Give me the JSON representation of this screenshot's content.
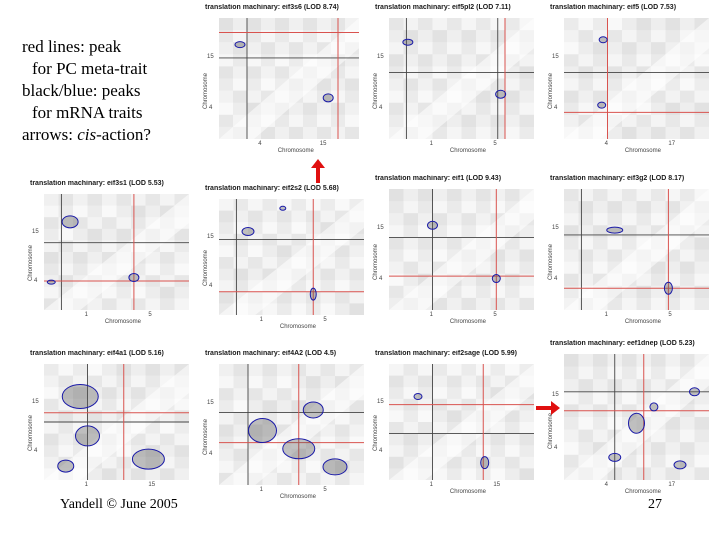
{
  "legend": {
    "line1": "red lines: peak",
    "line2": "for PC meta-trait",
    "line3": "black/blue: peaks",
    "line4": "for mRNA traits",
    "line5_prefix": "arrows: ",
    "line5_em": "cis",
    "line5_suffix": "-action?"
  },
  "footer": {
    "author": "Yandell © June 2005",
    "page": "27"
  },
  "colors": {
    "red_line": "#d9534f",
    "black_line": "#444444",
    "blob": "#1a1aa8",
    "arrow": "#e01010"
  },
  "chart_data": [
    {
      "type": "heatmap",
      "title": "translation machinary: eif3s6 (LOD 8.74)",
      "xlabel": "Chromosome",
      "ylabel": "Chromosome",
      "yticks": [
        "15",
        "4"
      ],
      "xticks": [
        "4",
        "15"
      ],
      "arrow": "up"
    },
    {
      "type": "heatmap",
      "title": "translation machinary: eif5pl2 (LOD 7.11)",
      "xlabel": "Chromosome",
      "ylabel": "Chromosome",
      "yticks": [
        "15",
        "4"
      ],
      "xticks": [
        "1",
        "5"
      ]
    },
    {
      "type": "heatmap",
      "title": "translation machinary: eif5 (LOD 7.53)",
      "xlabel": "Chromosome",
      "ylabel": "Chromosome",
      "yticks": [
        "15",
        "4"
      ],
      "xticks": [
        "4",
        "17"
      ]
    },
    {
      "type": "heatmap",
      "title": "translation machinary: eif3s1 (LOD 5.53)",
      "xlabel": "Chromosome",
      "ylabel": "Chromosome",
      "yticks": [
        "15",
        "4"
      ],
      "xticks": [
        "1",
        "5"
      ]
    },
    {
      "type": "heatmap",
      "title": "translation machinary: eif2s2 (LOD 5.68)",
      "xlabel": "Chromosome",
      "ylabel": "Chromosome",
      "yticks": [
        "15",
        "4"
      ],
      "xticks": [
        "1",
        "5"
      ]
    },
    {
      "type": "heatmap",
      "title": "translation machinary: eif1 (LOD 9.43)",
      "xlabel": "Chromosome",
      "ylabel": "Chromosome",
      "yticks": [
        "15",
        "4"
      ],
      "xticks": [
        "1",
        "5"
      ]
    },
    {
      "type": "heatmap",
      "title": "translation machinary: eif3g2 (LOD 8.17)",
      "xlabel": "Chromosome",
      "ylabel": "Chromosome",
      "yticks": [
        "15",
        "4"
      ],
      "xticks": [
        "1",
        "5"
      ]
    },
    {
      "type": "heatmap",
      "title": "translation machinary: eif4a1 (LOD 5.16)",
      "xlabel": "",
      "ylabel": "Chromosome",
      "yticks": [
        "15",
        "4"
      ],
      "xticks": [
        "1",
        "15"
      ]
    },
    {
      "type": "heatmap",
      "title": "translation machinary: eif4A2 (LOD 4.5)",
      "xlabel": "Chromosome",
      "ylabel": "Chromosome",
      "yticks": [
        "15",
        "4"
      ],
      "xticks": [
        "1",
        "5"
      ]
    },
    {
      "type": "heatmap",
      "title": "translation machinary: eif2sage (LOD 5.99)",
      "xlabel": "Chromosome",
      "ylabel": "Chromosome",
      "yticks": [
        "15",
        "4"
      ],
      "xticks": [
        "1",
        "15"
      ]
    },
    {
      "type": "heatmap",
      "title": "translation machinary: eef1dnep (LOD 5.23)",
      "xlabel": "Chromosome",
      "ylabel": "Chromosome",
      "yticks": [
        "15",
        "4"
      ],
      "xticks": [
        "4",
        "17"
      ],
      "arrow": "right"
    }
  ]
}
